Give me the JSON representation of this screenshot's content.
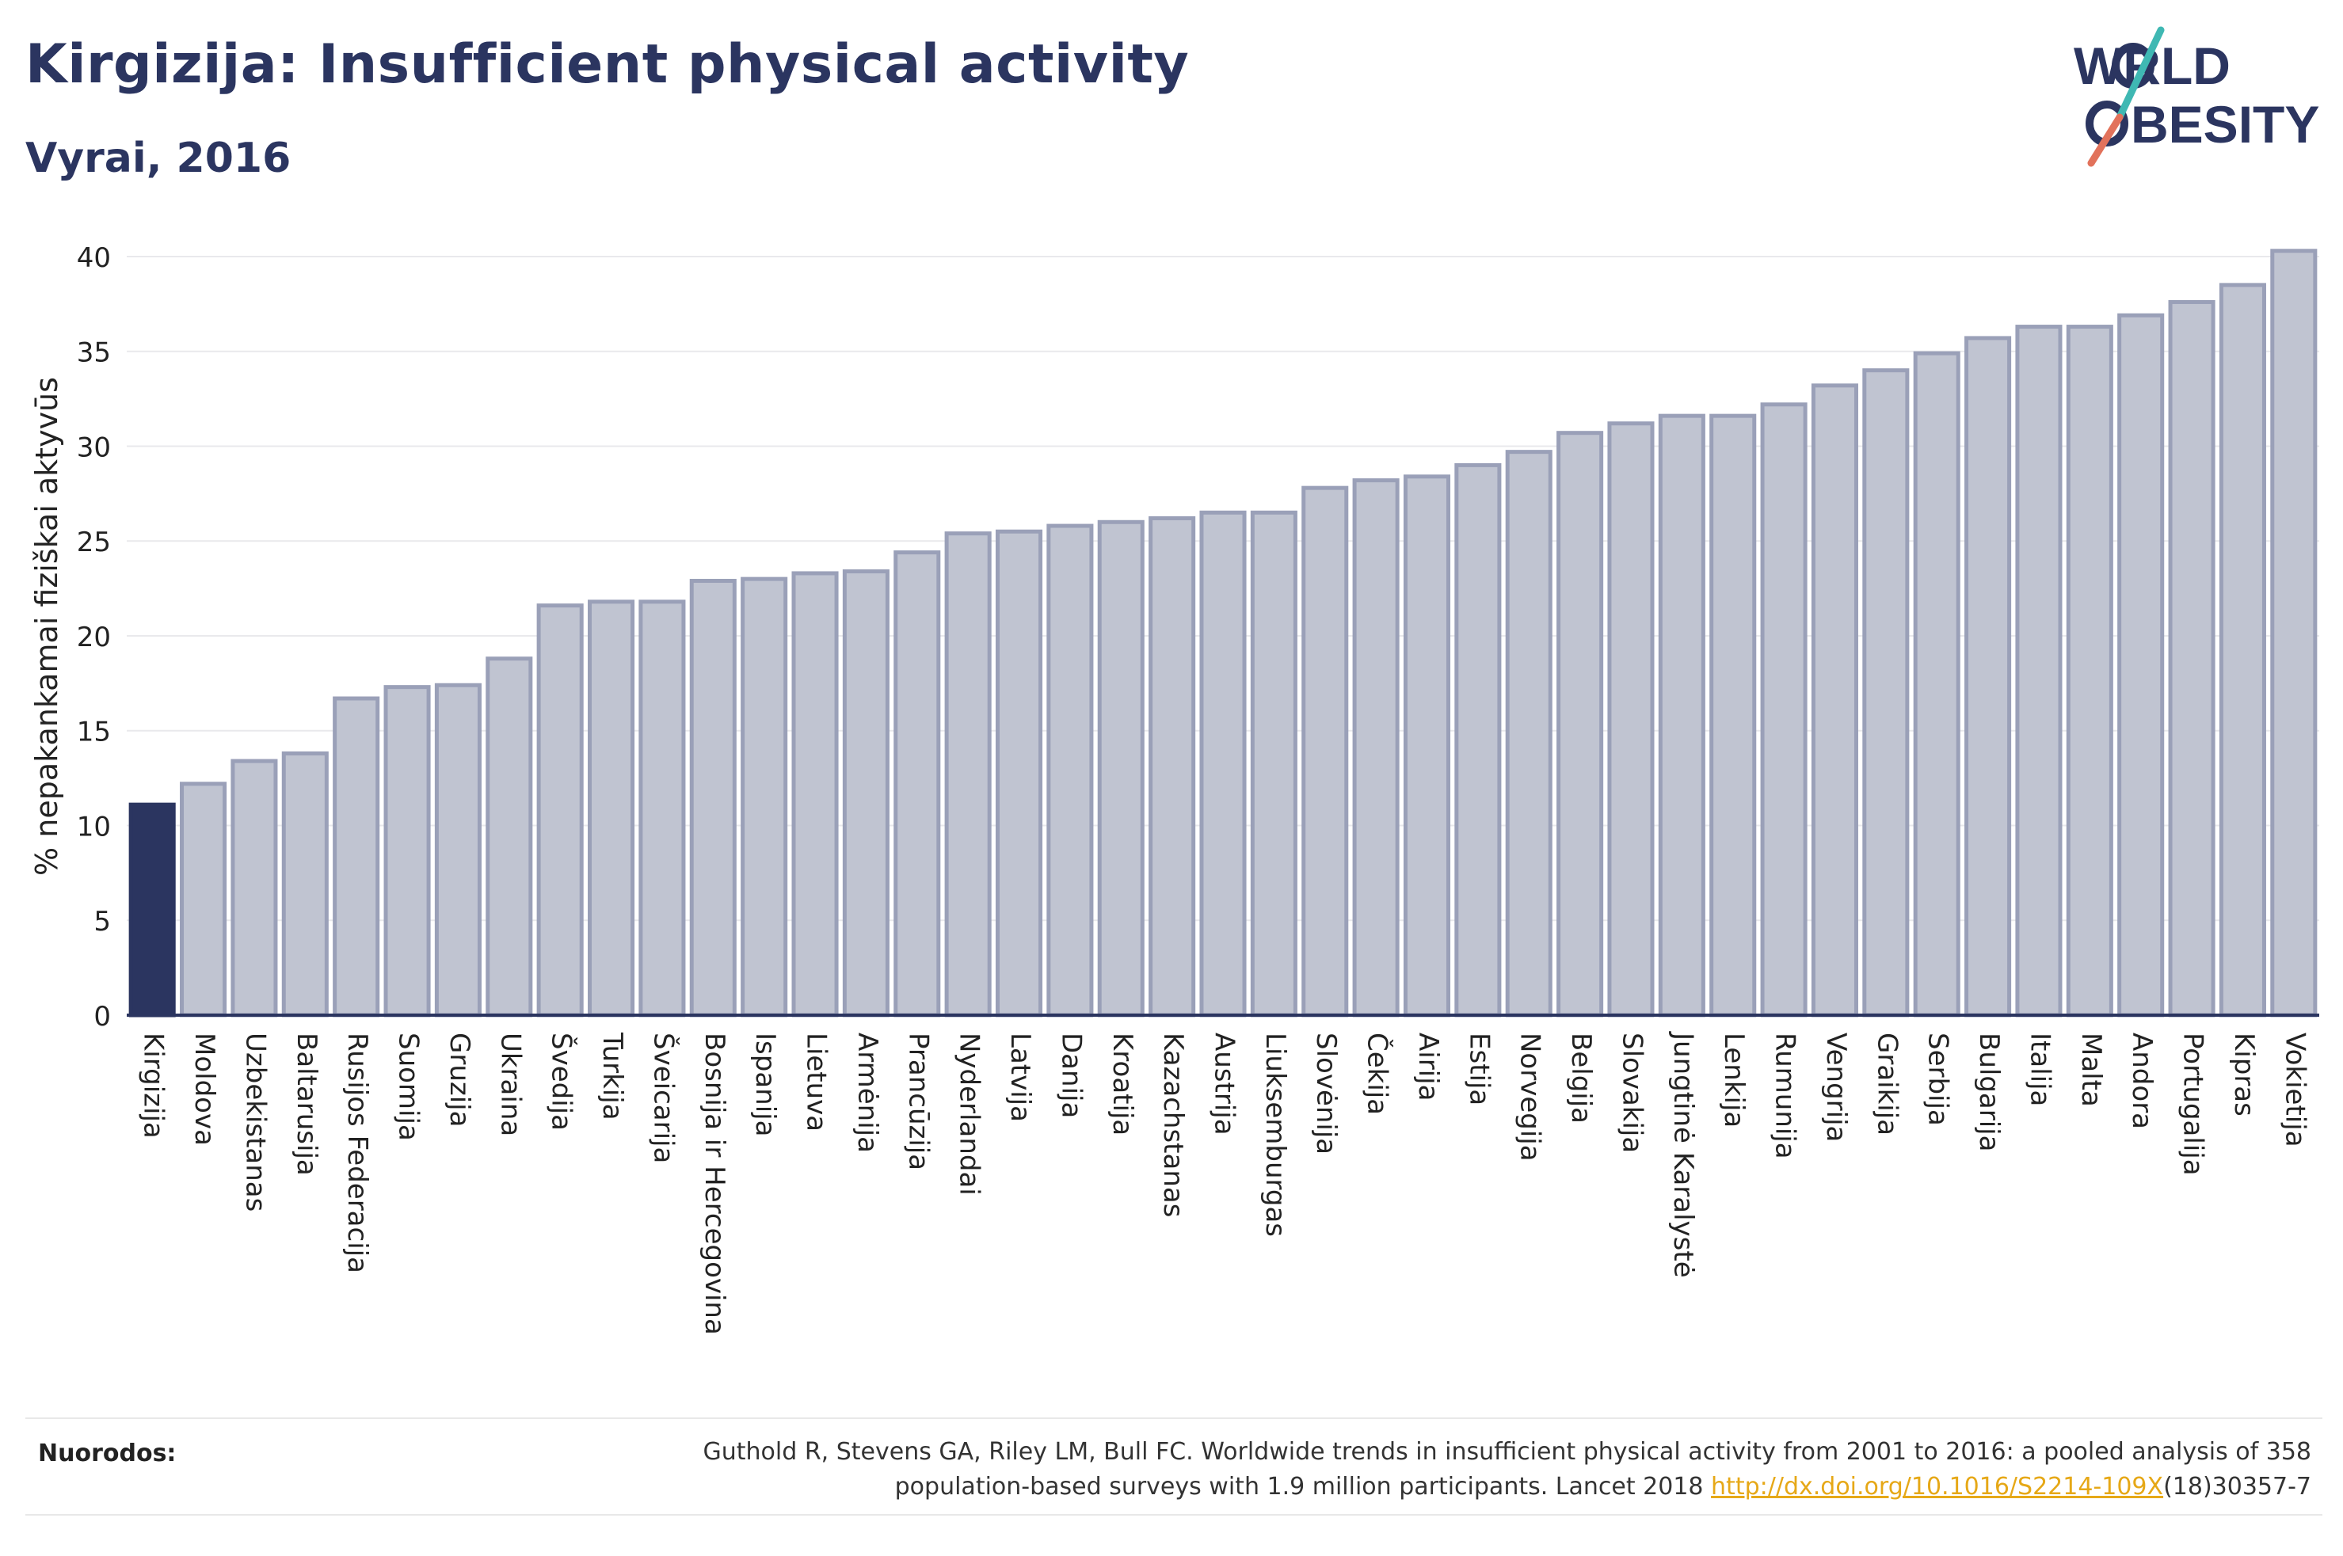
{
  "title": "Kirgizija: Insufficient physical activity",
  "subtitle": "Vyrai, 2016",
  "logo": {
    "line1_a": "W",
    "line1_b": "RLD",
    "line2_a": "BESITY",
    "accent_colors": [
      "#e2725b",
      "#3fb8b3"
    ]
  },
  "chart_data": {
    "type": "bar",
    "title": "Kirgizija: Insufficient physical activity",
    "subtitle": "Vyrai, 2016",
    "xlabel": "",
    "ylabel": "% nepakankamai fiziškai aktyvūs",
    "ylim": [
      0,
      41
    ],
    "yticks": [
      0,
      5,
      10,
      15,
      20,
      25,
      30,
      35,
      40
    ],
    "grid": true,
    "highlight_index": 0,
    "highlight_color": "#2b3560",
    "bar_color": "#c0c4d1",
    "bar_border_color": "#9aa0b8",
    "categories": [
      "Kirgizija",
      "Moldova",
      "Uzbekistanas",
      "Baltarusija",
      "Rusijos Federacija",
      "Suomija",
      "Gruzija",
      "Ukraina",
      "Švedija",
      "Turkija",
      "Šveicarija",
      "Bosnija ir Hercegovina",
      "Ispanija",
      "Lietuva",
      "Armėnija",
      "Prancūzija",
      "Nyderlandai",
      "Latvija",
      "Danija",
      "Kroatija",
      "Kazachstanas",
      "Austrija",
      "Liuksemburgas",
      "Slovėnija",
      "Čekija",
      "Airija",
      "Estija",
      "Norvegija",
      "Belgija",
      "Slovakija",
      "Jungtinė Karalystė",
      "Lenkija",
      "Rumunija",
      "Vengrija",
      "Graikija",
      "Serbija",
      "Bulgarija",
      "Italija",
      "Malta",
      "Andora",
      "Portugalija",
      "Kipras",
      "Vokietija"
    ],
    "values": [
      11.1,
      12.2,
      13.4,
      13.8,
      16.7,
      17.3,
      17.4,
      18.8,
      21.6,
      21.8,
      21.8,
      22.9,
      23.0,
      23.3,
      23.4,
      24.4,
      25.4,
      25.5,
      25.8,
      26.0,
      26.2,
      26.5,
      26.5,
      27.8,
      28.2,
      28.4,
      29.0,
      29.7,
      30.7,
      31.2,
      31.6,
      31.6,
      32.2,
      33.2,
      34.0,
      34.9,
      35.7,
      36.3,
      36.3,
      36.9,
      37.6,
      38.5,
      40.3
    ]
  },
  "sources": {
    "label": "Nuorodos:",
    "text_line1": "Guthold R, Stevens GA, Riley LM, Bull FC. Worldwide trends in insufficient physical activity from 2001 to 2016: a pooled analysis of 358",
    "text_line2_prefix": "population-based surveys with 1.9 million participants. Lancet 2018 ",
    "link": "http://dx.doi.org/10.1016/S2214-109X",
    "text_line2_suffix": "(18)30357-7"
  }
}
